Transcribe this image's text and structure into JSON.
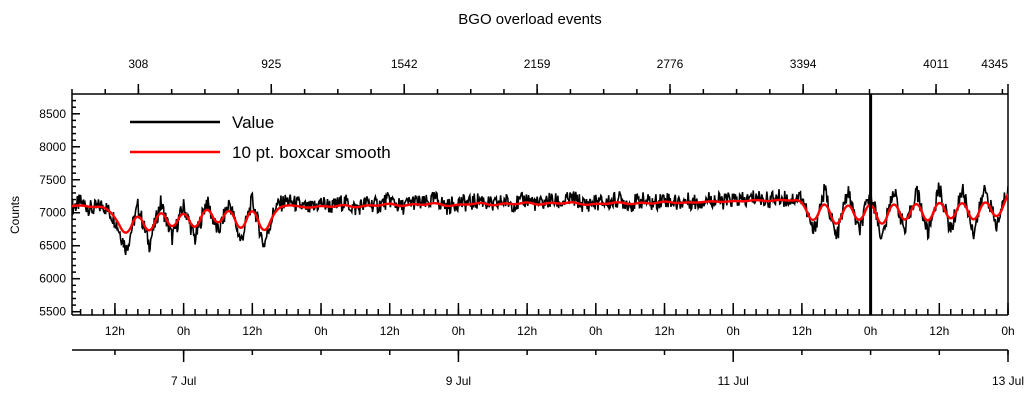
{
  "chart_data": {
    "type": "line",
    "title": "BGO overload events",
    "ylabel": "Counts",
    "ylim": [
      5450,
      8800
    ],
    "y_ticks": [
      5500,
      6000,
      6500,
      7000,
      7500,
      8000,
      8500
    ],
    "y_tick_labels": [
      "5500",
      "6000",
      "6500",
      "7000",
      "7500",
      "8000",
      "8500"
    ],
    "top_axis": {
      "range": [
        0,
        4345
      ],
      "ticks": [
        308,
        925,
        1542,
        2159,
        2776,
        3394,
        4011,
        4345
      ],
      "labels": [
        "308",
        "925",
        "1542",
        "2159",
        "2776",
        "3394",
        "4011",
        "4345"
      ]
    },
    "time_axis": {
      "range": [
        "2016-07-06T04:30",
        "2016-07-13T00:00"
      ],
      "hour_ticks": [
        {
          "t": "2016-07-06T12:00",
          "label": "12h"
        },
        {
          "t": "2016-07-07T00:00",
          "label": "0h"
        },
        {
          "t": "2016-07-07T12:00",
          "label": "12h"
        },
        {
          "t": "2016-07-08T00:00",
          "label": "0h"
        },
        {
          "t": "2016-07-08T12:00",
          "label": "12h"
        },
        {
          "t": "2016-07-09T00:00",
          "label": "0h"
        },
        {
          "t": "2016-07-09T12:00",
          "label": "12h"
        },
        {
          "t": "2016-07-10T00:00",
          "label": "0h"
        },
        {
          "t": "2016-07-10T12:00",
          "label": "12h"
        },
        {
          "t": "2016-07-11T00:00",
          "label": "0h"
        },
        {
          "t": "2016-07-11T12:00",
          "label": "12h"
        },
        {
          "t": "2016-07-12T00:00",
          "label": "0h"
        },
        {
          "t": "2016-07-12T12:00",
          "label": "12h"
        },
        {
          "t": "2016-07-13T00:00",
          "label": "0h"
        }
      ],
      "day_ticks": [
        {
          "t": "2016-07-07T00:00",
          "label": "7 Jul"
        },
        {
          "t": "2016-07-09T00:00",
          "label": "9 Jul"
        },
        {
          "t": "2016-07-11T00:00",
          "label": "11 Jul"
        },
        {
          "t": "2016-07-13T00:00",
          "label": "13 Jul"
        }
      ]
    },
    "cursor_line": {
      "t": "2016-07-12T00:00"
    },
    "legend": {
      "placement": "top-left"
    },
    "series": [
      {
        "name": "Value",
        "color": "#000000",
        "x": [
          "2016-07-06T04:30",
          "2016-07-06T06:00",
          "2016-07-06T08:00",
          "2016-07-06T10:00",
          "2016-07-06T12:00",
          "2016-07-06T14:00",
          "2016-07-06T16:00",
          "2016-07-06T18:00",
          "2016-07-06T20:00",
          "2016-07-06T22:00",
          "2016-07-07T00:00",
          "2016-07-07T02:00",
          "2016-07-07T04:00",
          "2016-07-07T06:00",
          "2016-07-07T08:00",
          "2016-07-07T10:00",
          "2016-07-07T12:00",
          "2016-07-07T14:00",
          "2016-07-07T16:00",
          "2016-07-07T18:00",
          "2016-07-07T20:00",
          "2016-07-07T22:00",
          "2016-07-08T00:00",
          "2016-07-08T02:00",
          "2016-07-08T04:00",
          "2016-07-08T06:00",
          "2016-07-08T08:00",
          "2016-07-08T10:00",
          "2016-07-08T12:00",
          "2016-07-08T14:00",
          "2016-07-08T16:00",
          "2016-07-08T18:00",
          "2016-07-08T20:00",
          "2016-07-08T22:00",
          "2016-07-09T00:00",
          "2016-07-09T02:00",
          "2016-07-09T04:00",
          "2016-07-09T06:00",
          "2016-07-09T08:00",
          "2016-07-09T10:00",
          "2016-07-09T12:00",
          "2016-07-09T14:00",
          "2016-07-09T16:00",
          "2016-07-09T18:00",
          "2016-07-09T20:00",
          "2016-07-09T22:00",
          "2016-07-10T00:00",
          "2016-07-10T02:00",
          "2016-07-10T04:00",
          "2016-07-10T06:00",
          "2016-07-10T08:00",
          "2016-07-10T10:00",
          "2016-07-10T12:00",
          "2016-07-10T14:00",
          "2016-07-10T16:00",
          "2016-07-10T18:00",
          "2016-07-10T20:00",
          "2016-07-10T22:00",
          "2016-07-11T00:00",
          "2016-07-11T02:00",
          "2016-07-11T04:00",
          "2016-07-11T06:00",
          "2016-07-11T08:00",
          "2016-07-11T10:00",
          "2016-07-11T12:00",
          "2016-07-11T14:00",
          "2016-07-11T16:00",
          "2016-07-11T18:00",
          "2016-07-11T20:00",
          "2016-07-11T22:00",
          "2016-07-12T00:00",
          "2016-07-12T02:00",
          "2016-07-12T04:00",
          "2016-07-12T06:00",
          "2016-07-12T08:00",
          "2016-07-12T10:00",
          "2016-07-12T12:00",
          "2016-07-12T14:00",
          "2016-07-12T16:00",
          "2016-07-12T18:00",
          "2016-07-12T20:00",
          "2016-07-12T22:00",
          "2016-07-13T00:00"
        ],
        "y": [
          7080,
          7160,
          7050,
          7120,
          6900,
          6450,
          7100,
          6520,
          7150,
          6620,
          7100,
          6600,
          7180,
          6700,
          7160,
          6560,
          7200,
          6500,
          7090,
          7180,
          7120,
          7050,
          7150,
          7090,
          7170,
          7060,
          7150,
          7110,
          7200,
          7080,
          7170,
          7130,
          7210,
          7090,
          7160,
          7140,
          7200,
          7100,
          7180,
          7130,
          7210,
          7120,
          7190,
          7150,
          7220,
          7120,
          7160,
          7150,
          7210,
          7130,
          7190,
          7140,
          7220,
          7150,
          7180,
          7160,
          7210,
          7170,
          7200,
          7180,
          7240,
          7190,
          7230,
          7200,
          7250,
          6700,
          7350,
          6600,
          7330,
          6700,
          7340,
          6600,
          7360,
          6700,
          7350,
          6680,
          7380,
          6720,
          7370,
          6700,
          7380,
          6780,
          7400
        ]
      },
      {
        "name": "10 pt. boxcar smooth",
        "color": "#ff0000",
        "x": [
          "2016-07-06T04:30",
          "2016-07-06T06:00",
          "2016-07-06T08:00",
          "2016-07-06T10:00",
          "2016-07-06T12:00",
          "2016-07-06T14:00",
          "2016-07-06T16:00",
          "2016-07-06T18:00",
          "2016-07-06T20:00",
          "2016-07-06T22:00",
          "2016-07-07T00:00",
          "2016-07-07T02:00",
          "2016-07-07T04:00",
          "2016-07-07T06:00",
          "2016-07-07T08:00",
          "2016-07-07T10:00",
          "2016-07-07T12:00",
          "2016-07-07T14:00",
          "2016-07-07T16:00",
          "2016-07-07T18:00",
          "2016-07-07T20:00",
          "2016-07-07T22:00",
          "2016-07-08T00:00",
          "2016-07-08T02:00",
          "2016-07-08T04:00",
          "2016-07-08T06:00",
          "2016-07-08T08:00",
          "2016-07-08T10:00",
          "2016-07-08T12:00",
          "2016-07-08T14:00",
          "2016-07-08T16:00",
          "2016-07-08T18:00",
          "2016-07-08T20:00",
          "2016-07-08T22:00",
          "2016-07-09T00:00",
          "2016-07-09T02:00",
          "2016-07-09T04:00",
          "2016-07-09T06:00",
          "2016-07-09T08:00",
          "2016-07-09T10:00",
          "2016-07-09T12:00",
          "2016-07-09T14:00",
          "2016-07-09T16:00",
          "2016-07-09T18:00",
          "2016-07-09T20:00",
          "2016-07-09T22:00",
          "2016-07-10T00:00",
          "2016-07-10T02:00",
          "2016-07-10T04:00",
          "2016-07-10T06:00",
          "2016-07-10T08:00",
          "2016-07-10T10:00",
          "2016-07-10T12:00",
          "2016-07-10T14:00",
          "2016-07-10T16:00",
          "2016-07-10T18:00",
          "2016-07-10T20:00",
          "2016-07-10T22:00",
          "2016-07-11T00:00",
          "2016-07-11T02:00",
          "2016-07-11T04:00",
          "2016-07-11T06:00",
          "2016-07-11T08:00",
          "2016-07-11T10:00",
          "2016-07-11T12:00",
          "2016-07-11T14:00",
          "2016-07-11T16:00",
          "2016-07-11T18:00",
          "2016-07-11T20:00",
          "2016-07-11T22:00",
          "2016-07-12T00:00",
          "2016-07-12T02:00",
          "2016-07-12T04:00",
          "2016-07-12T06:00",
          "2016-07-12T08:00",
          "2016-07-12T10:00",
          "2016-07-12T12:00",
          "2016-07-12T14:00",
          "2016-07-12T16:00",
          "2016-07-12T18:00",
          "2016-07-12T20:00",
          "2016-07-12T22:00",
          "2016-07-13T00:00"
        ],
        "y": [
          7100,
          7120,
          7080,
          7100,
          6950,
          6600,
          7050,
          6620,
          7100,
          6700,
          7080,
          6680,
          7150,
          6760,
          7130,
          6650,
          7150,
          6620,
          7050,
          7120,
          7100,
          7070,
          7110,
          7080,
          7130,
          7070,
          7120,
          7100,
          7150,
          7090,
          7140,
          7110,
          7160,
          7090,
          7130,
          7120,
          7160,
          7100,
          7150,
          7120,
          7170,
          7110,
          7160,
          7130,
          7170,
          7110,
          7140,
          7130,
          7170,
          7120,
          7160,
          7130,
          7180,
          7140,
          7160,
          7150,
          7180,
          7160,
          7180,
          7170,
          7200,
          7170,
          7200,
          7180,
          7200,
          6780,
          7250,
          6700,
          7230,
          6780,
          7240,
          6700,
          7250,
          6780,
          7250,
          6760,
          7270,
          6800,
          7260,
          6780,
          7270,
          6840,
          7290
        ]
      }
    ]
  }
}
